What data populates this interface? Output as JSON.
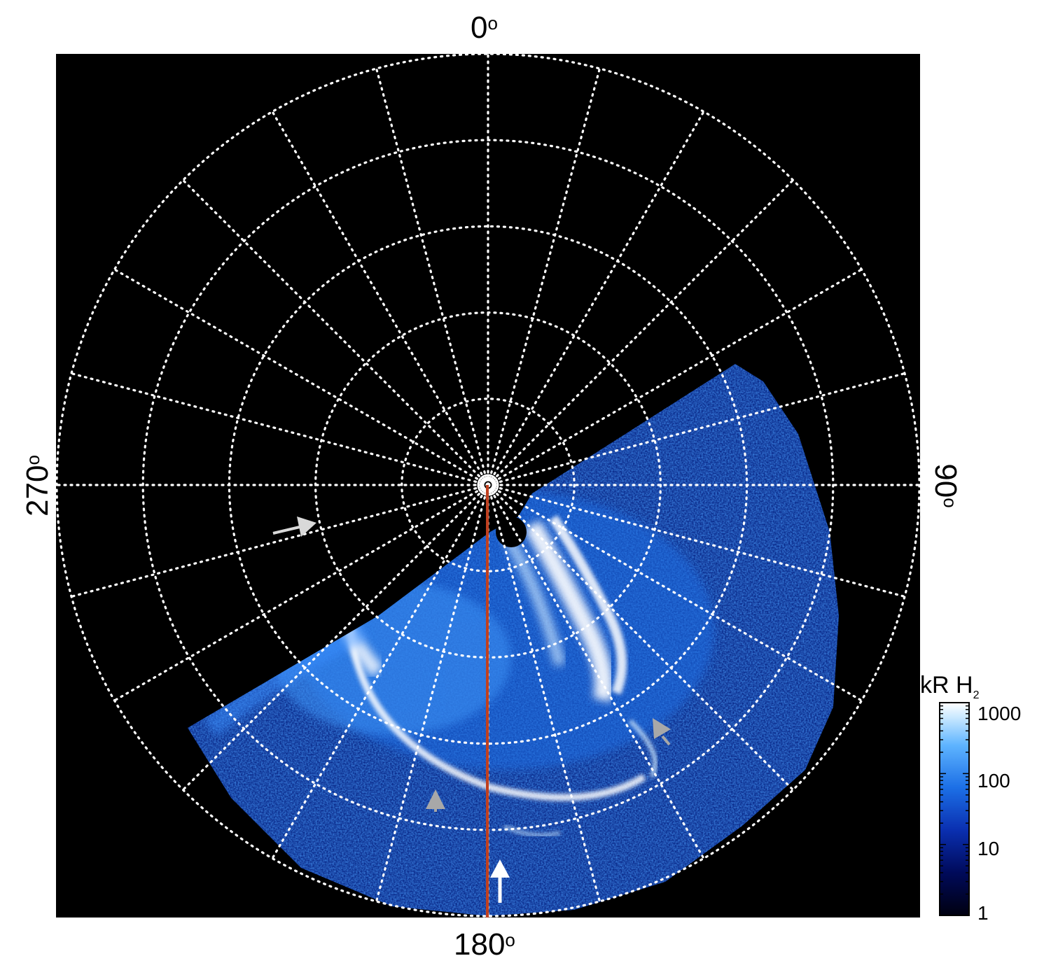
{
  "axis_labels": {
    "top": "0",
    "right": "90",
    "bottom": "180",
    "left": "270",
    "degree_symbol": "o"
  },
  "colorbar": {
    "title_main": "kR H",
    "title_sub": "2",
    "ticks": [
      "1000",
      "100",
      "10",
      "1"
    ],
    "scale": "log",
    "range": [
      1,
      1000
    ],
    "colors": [
      "#000010",
      "#000a5a",
      "#0a2fb0",
      "#1c6fe6",
      "#5eb4ff",
      "#c8e8ff",
      "#ffffff"
    ]
  },
  "colors": {
    "background": "#000000",
    "grid": "#ffffff",
    "meridian_line": "#c0401f",
    "arrow_white": "#ffffff",
    "arrow_gray": "#a8a8a8"
  },
  "grid": {
    "style": "dotted",
    "parallels": 5,
    "meridian_spacing_deg": 15
  }
}
